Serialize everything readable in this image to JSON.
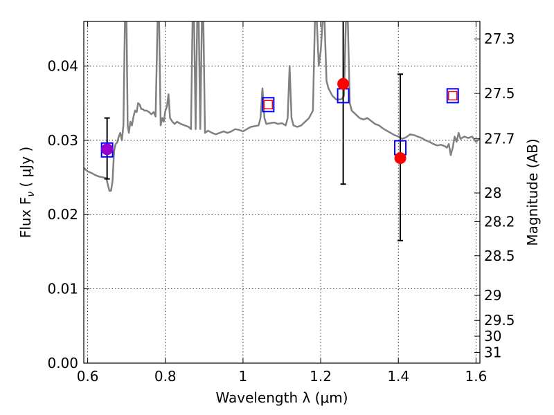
{
  "chart_data": {
    "type": "scatter",
    "xlabel": "Wavelength  λ (μm)",
    "ylabel": "Flux  F",
    "ylabel_sub": "ν",
    "ylabel_unit": " ( μJy )",
    "ylabel_right": "Magnitude (AB)",
    "xlim": [
      0.59,
      1.61
    ],
    "ylim": [
      0.0,
      0.046
    ],
    "grid": true,
    "x_ticks": [
      {
        "value": 0.6,
        "label": "0.6"
      },
      {
        "value": 0.8,
        "label": "0.8"
      },
      {
        "value": 1.0,
        "label": "1"
      },
      {
        "value": 1.2,
        "label": "1.2"
      },
      {
        "value": 1.4,
        "label": "1.4"
      },
      {
        "value": 1.6,
        "label": "1.6"
      }
    ],
    "y_ticks": [
      {
        "value": 0.0,
        "label": "0.00"
      },
      {
        "value": 0.01,
        "label": "0.01"
      },
      {
        "value": 0.02,
        "label": "0.02"
      },
      {
        "value": 0.03,
        "label": "0.03"
      },
      {
        "value": 0.04,
        "label": "0.04"
      }
    ],
    "magnitude_ticks": [
      {
        "label": "27.3",
        "mag": 27.3
      },
      {
        "label": "27.5",
        "mag": 27.5
      },
      {
        "label": "27.7",
        "mag": 27.7
      },
      {
        "label": "28",
        "mag": 28.0
      },
      {
        "label": "28.2",
        "mag": 28.2
      },
      {
        "label": "28.5",
        "mag": 28.5
      },
      {
        "label": "29",
        "mag": 29.0
      },
      {
        "label": "29.5",
        "mag": 29.5
      },
      {
        "label": "30",
        "mag": 30.0
      },
      {
        "label": "31",
        "mag": 31.0
      }
    ],
    "series": [
      {
        "kind": "model-spectrum",
        "color": "#808080",
        "points": [
          [
            0.59,
            0.0263
          ],
          [
            0.6,
            0.0258
          ],
          [
            0.61,
            0.0256
          ],
          [
            0.62,
            0.0253
          ],
          [
            0.63,
            0.0251
          ],
          [
            0.64,
            0.025
          ],
          [
            0.648,
            0.0249
          ],
          [
            0.652,
            0.024
          ],
          [
            0.656,
            0.0232
          ],
          [
            0.66,
            0.0232
          ],
          [
            0.664,
            0.0245
          ],
          [
            0.668,
            0.0285
          ],
          [
            0.672,
            0.0295
          ],
          [
            0.676,
            0.0297
          ],
          [
            0.68,
            0.0305
          ],
          [
            0.684,
            0.031
          ],
          [
            0.688,
            0.03
          ],
          [
            0.692,
            0.032
          ],
          [
            0.696,
            0.046
          ],
          [
            0.7,
            0.046
          ],
          [
            0.703,
            0.032
          ],
          [
            0.706,
            0.031
          ],
          [
            0.71,
            0.0325
          ],
          [
            0.714,
            0.032
          ],
          [
            0.718,
            0.0332
          ],
          [
            0.722,
            0.034
          ],
          [
            0.726,
            0.0338
          ],
          [
            0.73,
            0.035
          ],
          [
            0.734,
            0.0348
          ],
          [
            0.738,
            0.0342
          ],
          [
            0.742,
            0.0342
          ],
          [
            0.746,
            0.034
          ],
          [
            0.752,
            0.034
          ],
          [
            0.758,
            0.0338
          ],
          [
            0.764,
            0.0335
          ],
          [
            0.77,
            0.0338
          ],
          [
            0.775,
            0.0332
          ],
          [
            0.78,
            0.046
          ],
          [
            0.784,
            0.046
          ],
          [
            0.788,
            0.032
          ],
          [
            0.792,
            0.033
          ],
          [
            0.796,
            0.0325
          ],
          [
            0.8,
            0.034
          ],
          [
            0.804,
            0.0345
          ],
          [
            0.808,
            0.0362
          ],
          [
            0.812,
            0.033
          ],
          [
            0.818,
            0.0325
          ],
          [
            0.824,
            0.0322
          ],
          [
            0.83,
            0.0325
          ],
          [
            0.84,
            0.0322
          ],
          [
            0.85,
            0.032
          ],
          [
            0.86,
            0.0318
          ],
          [
            0.866,
            0.0315
          ],
          [
            0.87,
            0.046
          ],
          [
            0.874,
            0.046
          ],
          [
            0.878,
            0.0315
          ],
          [
            0.882,
            0.046
          ],
          [
            0.886,
            0.046
          ],
          [
            0.89,
            0.0315
          ],
          [
            0.894,
            0.046
          ],
          [
            0.898,
            0.046
          ],
          [
            0.902,
            0.031
          ],
          [
            0.91,
            0.0313
          ],
          [
            0.92,
            0.031
          ],
          [
            0.93,
            0.0308
          ],
          [
            0.94,
            0.031
          ],
          [
            0.95,
            0.0312
          ],
          [
            0.96,
            0.031
          ],
          [
            0.97,
            0.0312
          ],
          [
            0.98,
            0.0315
          ],
          [
            0.99,
            0.0314
          ],
          [
            1.0,
            0.0312
          ],
          [
            1.01,
            0.0315
          ],
          [
            1.02,
            0.0318
          ],
          [
            1.03,
            0.0319
          ],
          [
            1.04,
            0.032
          ],
          [
            1.045,
            0.033
          ],
          [
            1.05,
            0.037
          ],
          [
            1.055,
            0.033
          ],
          [
            1.06,
            0.0322
          ],
          [
            1.07,
            0.0323
          ],
          [
            1.08,
            0.0324
          ],
          [
            1.09,
            0.0322
          ],
          [
            1.1,
            0.0323
          ],
          [
            1.11,
            0.032
          ],
          [
            1.115,
            0.033
          ],
          [
            1.12,
            0.04
          ],
          [
            1.125,
            0.033
          ],
          [
            1.13,
            0.032
          ],
          [
            1.14,
            0.0318
          ],
          [
            1.15,
            0.032
          ],
          [
            1.16,
            0.0325
          ],
          [
            1.17,
            0.033
          ],
          [
            1.18,
            0.034
          ],
          [
            1.185,
            0.046
          ],
          [
            1.19,
            0.046
          ],
          [
            1.195,
            0.04
          ],
          [
            1.2,
            0.042
          ],
          [
            1.205,
            0.046
          ],
          [
            1.21,
            0.046
          ],
          [
            1.215,
            0.038
          ],
          [
            1.22,
            0.037
          ],
          [
            1.23,
            0.036
          ],
          [
            1.24,
            0.0355
          ],
          [
            1.25,
            0.0355
          ],
          [
            1.255,
            0.0356
          ],
          [
            1.26,
            0.036
          ],
          [
            1.265,
            0.046
          ],
          [
            1.27,
            0.046
          ],
          [
            1.275,
            0.035
          ],
          [
            1.28,
            0.034
          ],
          [
            1.29,
            0.0335
          ],
          [
            1.3,
            0.033
          ],
          [
            1.31,
            0.0328
          ],
          [
            1.32,
            0.033
          ],
          [
            1.33,
            0.0326
          ],
          [
            1.34,
            0.0322
          ],
          [
            1.35,
            0.032
          ],
          [
            1.36,
            0.0316
          ],
          [
            1.37,
            0.0313
          ],
          [
            1.38,
            0.031
          ],
          [
            1.39,
            0.0307
          ],
          [
            1.4,
            0.0305
          ],
          [
            1.41,
            0.0302
          ],
          [
            1.42,
            0.0304
          ],
          [
            1.43,
            0.0308
          ],
          [
            1.44,
            0.0307
          ],
          [
            1.45,
            0.0305
          ],
          [
            1.46,
            0.0303
          ],
          [
            1.47,
            0.03
          ],
          [
            1.48,
            0.0298
          ],
          [
            1.49,
            0.0295
          ],
          [
            1.5,
            0.0293
          ],
          [
            1.51,
            0.0294
          ],
          [
            1.52,
            0.0292
          ],
          [
            1.525,
            0.029
          ],
          [
            1.53,
            0.0295
          ],
          [
            1.535,
            0.028
          ],
          [
            1.54,
            0.029
          ],
          [
            1.545,
            0.0305
          ],
          [
            1.55,
            0.0298
          ],
          [
            1.555,
            0.031
          ],
          [
            1.56,
            0.0302
          ],
          [
            1.57,
            0.0305
          ],
          [
            1.58,
            0.0303
          ],
          [
            1.59,
            0.0305
          ],
          [
            1.6,
            0.0298
          ],
          [
            1.605,
            0.03
          ],
          [
            1.61,
            0.0302
          ]
        ]
      },
      {
        "kind": "observed-errorbars",
        "color": "#000000",
        "points": [
          {
            "x": 0.65,
            "low": 0.0248,
            "high": 0.033
          },
          {
            "x": 1.258,
            "low": 0.0241,
            "high": 0.047
          },
          {
            "x": 1.405,
            "low": 0.0165,
            "high": 0.0389
          }
        ]
      },
      {
        "kind": "model-synthetic-squares",
        "color": "#0000ff",
        "points": [
          {
            "x": 0.65,
            "y": 0.0287
          },
          {
            "x": 1.065,
            "y": 0.0348
          },
          {
            "x": 1.258,
            "y": 0.036
          },
          {
            "x": 1.405,
            "y": 0.029
          },
          {
            "x": 1.54,
            "y": 0.036
          }
        ]
      },
      {
        "kind": "small-red-squares",
        "color": "#ff0000",
        "points": [
          {
            "x": 1.065,
            "y": 0.0348
          },
          {
            "x": 1.54,
            "y": 0.036
          }
        ]
      },
      {
        "kind": "observed-points",
        "color": "#ff0000",
        "points": [
          {
            "x": 1.258,
            "y": 0.0376
          },
          {
            "x": 1.405,
            "y": 0.0276
          }
        ]
      },
      {
        "kind": "observed-point-purple",
        "color": "#9900cc",
        "points": [
          {
            "x": 0.65,
            "y": 0.0288
          }
        ]
      }
    ]
  }
}
